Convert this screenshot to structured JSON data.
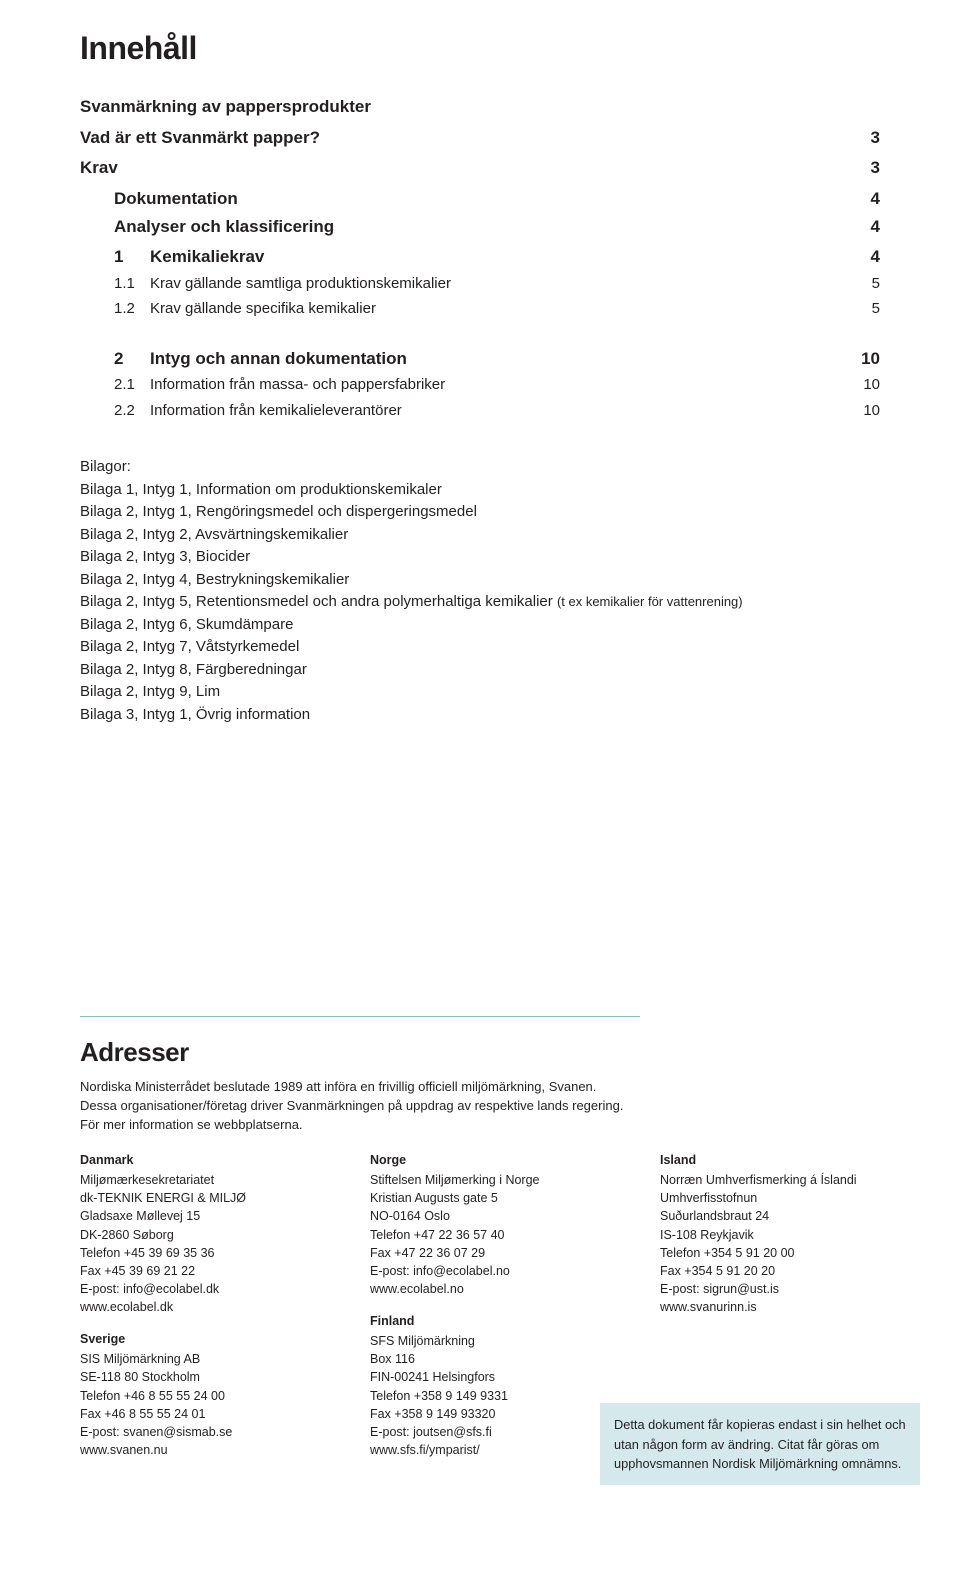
{
  "title": "Innehåll",
  "toc": {
    "r1": {
      "label": "Svanmärkning av pappersprodukter"
    },
    "r2": {
      "label": "Vad är ett Svanmärkt papper?",
      "page": "3"
    },
    "r3": {
      "label": "Krav",
      "page": "3"
    },
    "r4": {
      "label": "Dokumentation",
      "page": "4"
    },
    "r5": {
      "label": "Analyser och klassificering",
      "page": "4"
    },
    "r6": {
      "num": "1",
      "label": "Kemikaliekrav",
      "page": "4"
    },
    "r7": {
      "num": "1.1",
      "label": "Krav gällande samtliga produktionskemikalier",
      "page": "5"
    },
    "r8": {
      "num": "1.2",
      "label": "Krav gällande specifika kemikalier",
      "page": "5"
    },
    "r9": {
      "num": "2",
      "label": "Intyg och annan dokumentation",
      "page": "10"
    },
    "r10": {
      "num": "2.1",
      "label": "Information från massa- och pappersfabriker",
      "page": "10"
    },
    "r11": {
      "num": "2.2",
      "label": "Information från kemikalieleverantörer",
      "page": "10"
    }
  },
  "bilagor": {
    "head": "Bilagor:",
    "b1": "Bilaga 1, Intyg 1, Information om produktionskemikaler",
    "b2": "Bilaga 2, Intyg 1, Rengöringsmedel och dispergeringsmedel",
    "b3": "Bilaga 2, Intyg 2, Avsvärtningskemikalier",
    "b4": "Bilaga 2, Intyg 3, Biocider",
    "b5": "Bilaga 2, Intyg 4, Bestrykningskemikalier",
    "b6a": "Bilaga 2, Intyg 5, Retentionsmedel och andra polymerhaltiga kemikalier ",
    "b6b": "(t ex kemikalier för vattenrening)",
    "b7": "Bilaga 2, Intyg 6, Skumdämpare",
    "b8": "Bilaga 2, Intyg 7, Våtstyrkemedel",
    "b9": "Bilaga 2, Intyg 8, Färgberedningar",
    "b10": "Bilaga 2, Intyg 9, Lim",
    "b11": "Bilaga 3, Intyg 1, Övrig information"
  },
  "adresser": {
    "title": "Adresser",
    "intro1": "Nordiska Ministerrådet beslutade 1989 att införa en frivillig officiell miljömärkning, Svanen.",
    "intro2": "Dessa organisationer/företag driver Svanmärkningen på uppdrag av respektive lands regering.",
    "intro3": "För mer information se webbplatserna.",
    "dk": {
      "name": "Danmark",
      "l1": "Miljømærkesekretariatet",
      "l2": "dk-TEKNIK ENERGI & MILJØ",
      "l3": "Gladsaxe Møllevej 15",
      "l4": "DK-2860  Søborg",
      "l5": "Telefon +45 39 69 35 36",
      "l6": "Fax +45 39 69 21 22",
      "l7": "E-post: info@ecolabel.dk",
      "l8": "www.ecolabel.dk"
    },
    "se": {
      "name": "Sverige",
      "l1": "SIS Miljömärkning AB",
      "l2": "SE-118 80  Stockholm",
      "l3": "Telefon +46 8 55 55 24 00",
      "l4": "Fax +46 8 55 55 24 01",
      "l5": "E-post: svanen@sismab.se",
      "l6": "www.svanen.nu"
    },
    "no": {
      "name": "Norge",
      "l1": "Stiftelsen Miljømerking i Norge",
      "l2": "Kristian Augusts gate 5",
      "l3": "NO-0164  Oslo",
      "l4": "Telefon +47 22 36 57 40",
      "l5": "Fax +47 22 36 07 29",
      "l6": "E-post: info@ecolabel.no",
      "l7": "www.ecolabel.no"
    },
    "fi": {
      "name": "Finland",
      "l1": "SFS Miljömärkning",
      "l2": "Box 116",
      "l3": "FIN-00241  Helsingfors",
      "l4": "Telefon +358 9 149 9331",
      "l5": "Fax +358 9 149 93320",
      "l6": "E-post: joutsen@sfs.fi",
      "l7": "www.sfs.fi/ymparist/"
    },
    "is": {
      "name": "Island",
      "l1": "Norræn Umhverfismerking á Íslandi",
      "l2": "Umhverfisstofnun",
      "l3": "Suðurlandsbraut 24",
      "l4": "IS-108  Reykjavik",
      "l5": "Telefon +354 5 91 20 00",
      "l6": "Fax +354 5 91 20 20",
      "l7": "E-post: sigrun@ust.is",
      "l8": "www.svanurinn.is"
    }
  },
  "note": "Detta dokument får kopieras endast i sin helhet och utan någon form av ändring. Citat får göras om upphovsmannen Nordisk Miljömärkning omnämns.",
  "colors": {
    "rule": "#7fbfc9",
    "noteBg": "#d5e9ed",
    "text": "#231f20"
  }
}
